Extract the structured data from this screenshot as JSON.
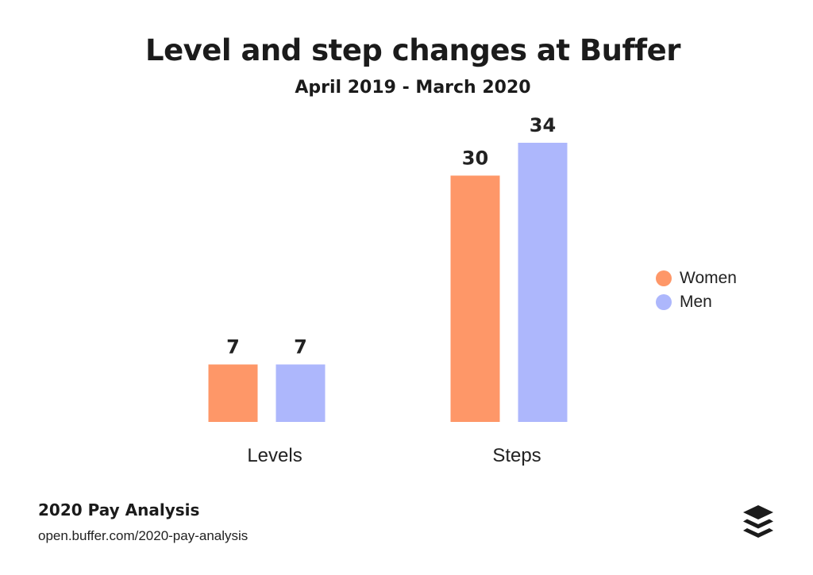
{
  "title": "Level and step changes at Buffer",
  "subtitle": "April 2019 - March 2020",
  "footer": {
    "title": "2020 Pay Analysis",
    "url": "open.buffer.com/2020-pay-analysis"
  },
  "logo_icon": "buffer-stack-logo",
  "colors": {
    "women": "#fe9768",
    "men": "#adb7fc"
  },
  "chart_data": {
    "type": "bar",
    "title": "Level and step changes at Buffer",
    "subtitle": "April 2019 - March 2020",
    "categories": [
      "Levels",
      "Steps"
    ],
    "series": [
      {
        "name": "Women",
        "values": [
          7,
          30
        ],
        "color": "#fe9768"
      },
      {
        "name": "Men",
        "values": [
          7,
          34
        ],
        "color": "#adb7fc"
      }
    ],
    "ylim": [
      0,
      34
    ],
    "grid": false,
    "legend_position": "right",
    "data_labels": true
  }
}
